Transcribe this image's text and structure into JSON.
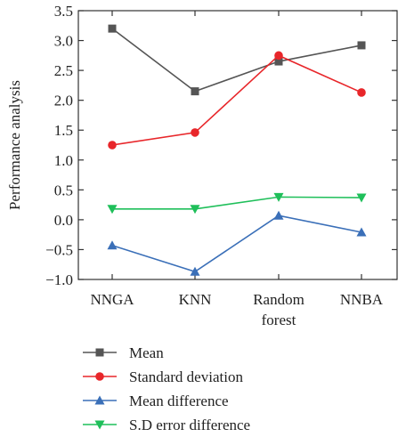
{
  "chart_data": {
    "type": "line",
    "title": "",
    "xlabel": "",
    "ylabel": "Performance analysis",
    "categories": [
      [
        "NNGA"
      ],
      [
        "KNN"
      ],
      [
        "Random",
        "forest"
      ],
      [
        "NNBA"
      ]
    ],
    "ylim": [
      -1.0,
      3.5
    ],
    "yticks": [
      "−1.0",
      "−0.5",
      "0.0",
      "0.5",
      "1.0",
      "1.5",
      "2.0",
      "2.5",
      "3.0",
      "3.5"
    ],
    "ytick_values": [
      -1.0,
      -0.5,
      0.0,
      0.5,
      1.0,
      1.5,
      2.0,
      2.5,
      3.0,
      3.5
    ],
    "grid": false,
    "legend_position": "below",
    "series": [
      {
        "name": "Mean",
        "values": [
          3.2,
          2.15,
          2.65,
          2.92
        ],
        "color": "#555555",
        "marker": "square"
      },
      {
        "name": "Standard deviation",
        "values": [
          1.25,
          1.46,
          2.75,
          2.13
        ],
        "color": "#e8262a",
        "marker": "circle"
      },
      {
        "name": "Mean difference",
        "values": [
          -0.43,
          -0.87,
          0.07,
          -0.21
        ],
        "color": "#3a6fb8",
        "marker": "triangle-up"
      },
      {
        "name": "S.D error difference",
        "values": [
          0.18,
          0.18,
          0.38,
          0.37
        ],
        "color": "#1fbf5a",
        "marker": "triangle-down"
      }
    ]
  }
}
